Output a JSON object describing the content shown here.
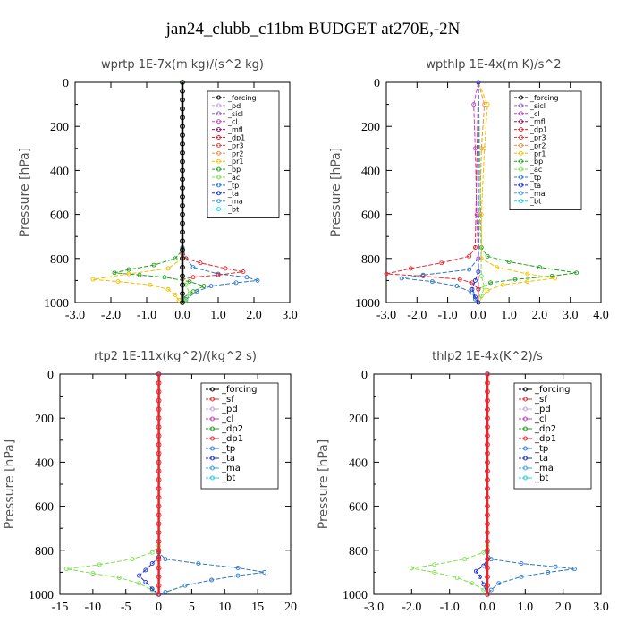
{
  "title": "jan24_clubb_c11bm  BUDGET at270E,-2N",
  "chart_data": [
    {
      "type": "line",
      "var": "wprtp",
      "scale": "1E-7x(m kg)/(s^2 kg)",
      "ylabel": "Pressure [hPa]",
      "xlim": [
        -3.0,
        3.0
      ],
      "ylim": [
        1000,
        0
      ],
      "xticks": [
        "-3.0",
        "-2.0",
        "-1.0",
        "0.0",
        "1.0",
        "2.0",
        "3.0"
      ],
      "yticks": [
        "0",
        "200",
        "400",
        "600",
        "800",
        "1000"
      ],
      "legend": [
        "_forcing",
        "_pd",
        "_sicl",
        "_cl",
        "_mfl",
        "_dp1",
        "_pr3",
        "_pr2",
        "_pr1",
        "_bp",
        "_ac",
        "_tp",
        "_ta",
        "_ma",
        "_bt"
      ],
      "series": [
        {
          "name": "_tp",
          "color": "#2a78c8",
          "points": [
            [
              0,
              0
            ],
            [
              0,
              750
            ],
            [
              0.1,
              800
            ],
            [
              0.3,
              840
            ],
            [
              1.0,
              870
            ],
            [
              1.8,
              885
            ],
            [
              2.1,
              900
            ],
            [
              1.5,
              910
            ],
            [
              0.8,
              925
            ],
            [
              0.4,
              950
            ],
            [
              0.1,
              985
            ],
            [
              0,
              1000
            ]
          ]
        },
        {
          "name": "_dp1",
          "color": "#e8242a",
          "points": [
            [
              0,
              0
            ],
            [
              0,
              780
            ],
            [
              0.1,
              800
            ],
            [
              0.5,
              820
            ],
            [
              1.2,
              845
            ],
            [
              1.7,
              860
            ],
            [
              1.0,
              875
            ],
            [
              0.3,
              885
            ],
            [
              0,
              895
            ],
            [
              0,
              1000
            ]
          ]
        },
        {
          "name": "_bp",
          "color": "#1ea01e",
          "points": [
            [
              0,
              0
            ],
            [
              0,
              760
            ],
            [
              -0.2,
              800
            ],
            [
              -0.8,
              830
            ],
            [
              -1.5,
              850
            ],
            [
              -1.9,
              865
            ],
            [
              -1.2,
              875
            ],
            [
              -0.5,
              885
            ],
            [
              0.2,
              905
            ],
            [
              0.6,
              925
            ],
            [
              0.3,
              950
            ],
            [
              0,
              980
            ],
            [
              0,
              1000
            ]
          ]
        },
        {
          "name": "_pr1",
          "color": "#f2c000",
          "points": [
            [
              0,
              0
            ],
            [
              0,
              800
            ],
            [
              -0.4,
              845
            ],
            [
              -1.5,
              870
            ],
            [
              -2.5,
              895
            ],
            [
              -1.8,
              905
            ],
            [
              -0.9,
              920
            ],
            [
              -0.4,
              940
            ],
            [
              -0.2,
              965
            ],
            [
              -0.1,
              990
            ],
            [
              0,
              1000
            ]
          ]
        },
        {
          "name": "_ac",
          "color": "#7ee04e",
          "points": [
            [
              0,
              0
            ],
            [
              0,
              880
            ],
            [
              0.1,
              920
            ],
            [
              0.2,
              960
            ],
            [
              0.1,
              990
            ],
            [
              0,
              1000
            ]
          ]
        },
        {
          "name": "_forcing",
          "color": "#000000",
          "points": [
            [
              0,
              0
            ],
            [
              0,
              1000
            ]
          ]
        }
      ]
    },
    {
      "type": "line",
      "var": "wpthlp",
      "scale": "1E-4x(m K)/s^2",
      "ylabel": "Pressure [hPa]",
      "xlim": [
        -3.0,
        4.0
      ],
      "ylim": [
        1000,
        0
      ],
      "xticks": [
        "-3.0",
        "-2.0",
        "-1.0",
        "0.0",
        "1.0",
        "2.0",
        "3.0",
        "4.0"
      ],
      "yticks": [
        "0",
        "200",
        "400",
        "600",
        "800",
        "1000"
      ],
      "legend": [
        "_forcing",
        "_sicl",
        "_cl",
        "_mfl",
        "_dp1",
        "_pr3",
        "_pr2",
        "_pr1",
        "_bp",
        "_ac",
        "_tp",
        "_ta",
        "_ma",
        "_bt"
      ],
      "series": [
        {
          "name": "_bp",
          "color": "#1ea01e",
          "points": [
            [
              0,
              0
            ],
            [
              0.1,
              750
            ],
            [
              0.3,
              790
            ],
            [
              1.0,
              815
            ],
            [
              2.0,
              840
            ],
            [
              3.2,
              865
            ],
            [
              2.4,
              880
            ],
            [
              1.2,
              895
            ],
            [
              0.4,
              910
            ],
            [
              0,
              940
            ],
            [
              0,
              1000
            ]
          ]
        },
        {
          "name": "_dp1",
          "color": "#e8242a",
          "points": [
            [
              0,
              0
            ],
            [
              -0.1,
              750
            ],
            [
              -0.3,
              790
            ],
            [
              -1.2,
              820
            ],
            [
              -2.2,
              845
            ],
            [
              -3.0,
              870
            ],
            [
              -1.8,
              880
            ],
            [
              -0.6,
              895
            ],
            [
              -0.2,
              910
            ],
            [
              0,
              940
            ],
            [
              0,
              1000
            ]
          ]
        },
        {
          "name": "_pr1",
          "color": "#f2c000",
          "points": [
            [
              0,
              0
            ],
            [
              0.3,
              100
            ],
            [
              0.2,
              300
            ],
            [
              0.1,
              600
            ],
            [
              0.1,
              800
            ],
            [
              0.6,
              840
            ],
            [
              1.6,
              870
            ],
            [
              2.5,
              890
            ],
            [
              1.6,
              905
            ],
            [
              0.8,
              920
            ],
            [
              0.3,
              945
            ],
            [
              0,
              1000
            ]
          ]
        },
        {
          "name": "_tp",
          "color": "#2a78c8",
          "points": [
            [
              0,
              0
            ],
            [
              0,
              800
            ],
            [
              -0.3,
              850
            ],
            [
              -1.8,
              875
            ],
            [
              -2.5,
              890
            ],
            [
              -1.5,
              905
            ],
            [
              -0.7,
              925
            ],
            [
              -0.2,
              955
            ],
            [
              -0.1,
              985
            ],
            [
              0,
              1000
            ]
          ]
        },
        {
          "name": "_pr2",
          "color": "#f09040",
          "points": [
            [
              0,
              0
            ],
            [
              0.2,
              100
            ],
            [
              0.1,
              300
            ],
            [
              0.05,
              600
            ],
            [
              0,
              800
            ],
            [
              0,
              1000
            ]
          ]
        },
        {
          "name": "_cl",
          "color": "#c040c0",
          "points": [
            [
              0,
              0
            ],
            [
              -0.15,
              100
            ],
            [
              -0.1,
              300
            ],
            [
              -0.05,
              600
            ],
            [
              0,
              800
            ],
            [
              0,
              1000
            ]
          ]
        },
        {
          "name": "_ac",
          "color": "#7ee04e",
          "points": [
            [
              0,
              0
            ],
            [
              0.1,
              880
            ],
            [
              0.2,
              930
            ],
            [
              0.1,
              970
            ],
            [
              0,
              1000
            ]
          ]
        },
        {
          "name": "_ta",
          "color": "#1a2cd0",
          "points": [
            [
              0,
              0
            ],
            [
              0,
              860
            ],
            [
              -0.1,
              900
            ],
            [
              -0.2,
              940
            ],
            [
              -0.1,
              975
            ],
            [
              0,
              1000
            ]
          ]
        }
      ]
    },
    {
      "type": "line",
      "var": "rtp2",
      "scale": "1E-11x(kg^2)/(kg^2 s)",
      "ylabel": "Pressure [hPa]",
      "xlim": [
        -15,
        20
      ],
      "ylim": [
        1000,
        0
      ],
      "xticks": [
        "-15",
        "-10",
        "-5",
        "0",
        "5",
        "10",
        "15",
        "20"
      ],
      "yticks": [
        "0",
        "200",
        "400",
        "600",
        "800",
        "1000"
      ],
      "legend": [
        "_forcing",
        "_sf",
        "_pd",
        "_cl",
        "_dp2",
        "_dp1",
        "_tp",
        "_ta",
        "_ma",
        "_bt"
      ],
      "series": [
        {
          "name": "_dp1",
          "color": "#7ee04e",
          "points": [
            [
              0,
              0
            ],
            [
              0,
              780
            ],
            [
              -1,
              810
            ],
            [
              -4,
              840
            ],
            [
              -9,
              865
            ],
            [
              -14,
              885
            ],
            [
              -10,
              905
            ],
            [
              -6,
              925
            ],
            [
              -3,
              950
            ],
            [
              -1,
              980
            ],
            [
              0,
              1000
            ]
          ]
        },
        {
          "name": "_tp",
          "color": "#2a78c8",
          "points": [
            [
              0,
              0
            ],
            [
              0,
              810
            ],
            [
              1,
              840
            ],
            [
              6,
              860
            ],
            [
              12,
              880
            ],
            [
              16,
              900
            ],
            [
              12,
              915
            ],
            [
              8,
              935
            ],
            [
              4,
              960
            ],
            [
              1,
              990
            ],
            [
              0,
              1000
            ]
          ]
        },
        {
          "name": "_ta",
          "color": "#1a2cd0",
          "points": [
            [
              0,
              0
            ],
            [
              0,
              830
            ],
            [
              -1,
              860
            ],
            [
              -2,
              890
            ],
            [
              -3,
              915
            ],
            [
              -2,
              945
            ],
            [
              -1,
              975
            ],
            [
              0,
              1000
            ]
          ]
        },
        {
          "name": "_forcing",
          "color": "#e8242a",
          "points": [
            [
              0,
              0
            ],
            [
              0,
              1000
            ]
          ]
        }
      ]
    },
    {
      "type": "line",
      "var": "thlp2",
      "scale": "1E-4x(K^2)/s",
      "ylabel": "Pressure [hPa]",
      "xlim": [
        -3.0,
        3.0
      ],
      "ylim": [
        1000,
        0
      ],
      "xticks": [
        "-3.0",
        "-2.0",
        "-1.0",
        "0.0",
        "1.0",
        "2.0",
        "3.0"
      ],
      "yticks": [
        "0",
        "200",
        "400",
        "600",
        "800",
        "1000"
      ],
      "legend": [
        "_forcing",
        "_sf",
        "_pd",
        "_cl",
        "_dp2",
        "_dp1",
        "_tp",
        "_ta",
        "_ma",
        "_bt"
      ],
      "series": [
        {
          "name": "_dp1",
          "color": "#7ee04e",
          "points": [
            [
              0,
              0
            ],
            [
              0,
              780
            ],
            [
              -0.1,
              810
            ],
            [
              -0.6,
              840
            ],
            [
              -1.4,
              865
            ],
            [
              -2.0,
              882
            ],
            [
              -1.4,
              900
            ],
            [
              -0.8,
              925
            ],
            [
              -0.4,
              950
            ],
            [
              -0.1,
              980
            ],
            [
              0,
              1000
            ]
          ]
        },
        {
          "name": "_tp",
          "color": "#2a78c8",
          "points": [
            [
              0,
              0
            ],
            [
              0,
              810
            ],
            [
              0.1,
              840
            ],
            [
              0.9,
              860
            ],
            [
              1.8,
              875
            ],
            [
              2.3,
              885
            ],
            [
              1.6,
              900
            ],
            [
              0.9,
              920
            ],
            [
              0.3,
              950
            ],
            [
              0.1,
              980
            ],
            [
              0,
              1000
            ]
          ]
        },
        {
          "name": "_ta",
          "color": "#1a2cd0",
          "points": [
            [
              0,
              0
            ],
            [
              0,
              840
            ],
            [
              -0.1,
              870
            ],
            [
              -0.3,
              895
            ],
            [
              -0.2,
              920
            ],
            [
              -0.1,
              955
            ],
            [
              0,
              1000
            ]
          ]
        },
        {
          "name": "_forcing",
          "color": "#e8242a",
          "points": [
            [
              0,
              0
            ],
            [
              0,
              1000
            ]
          ]
        }
      ]
    }
  ]
}
